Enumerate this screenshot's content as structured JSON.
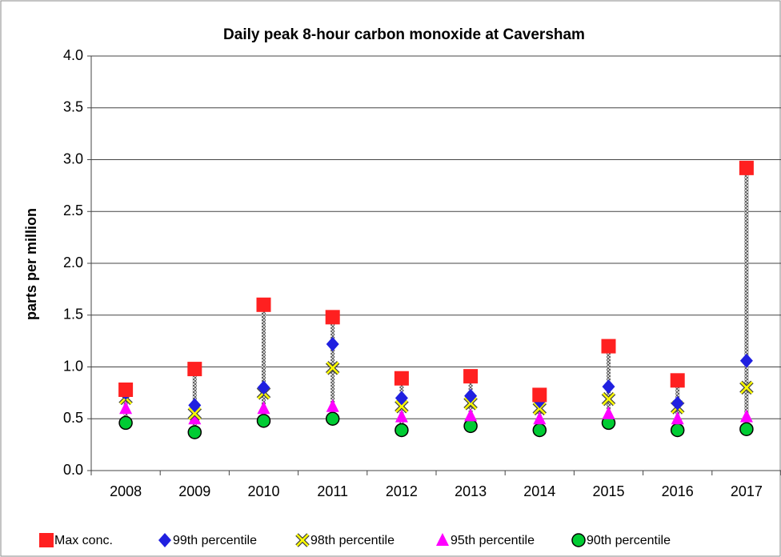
{
  "chart_data": {
    "type": "line",
    "title": "Daily peak 8-hour carbon monoxide at Caversham",
    "y_label": "parts per million",
    "categories": [
      "2008",
      "2009",
      "2010",
      "2011",
      "2012",
      "2013",
      "2014",
      "2015",
      "2016",
      "2017"
    ],
    "ylim": [
      0,
      4
    ],
    "yticks": [
      {
        "value": 0,
        "label": "0.0"
      },
      0.5,
      {
        "value": 1,
        "label": "1.0"
      },
      1.5,
      {
        "value": 2,
        "label": "2.0"
      },
      2.5,
      {
        "value": 3,
        "label": "3.0"
      },
      3.5,
      {
        "value": 4,
        "label": "4.0"
      }
    ],
    "grid": true,
    "high_low_lines": true,
    "legend": "bottom",
    "series": [
      {
        "name": "Max conc.",
        "color": "#ff2020",
        "marker": "square",
        "values": [
          0.78,
          0.98,
          1.6,
          1.48,
          0.89,
          0.91,
          0.73,
          1.2,
          0.87,
          2.92
        ]
      },
      {
        "name": "99th percentile",
        "color": "#2020e0",
        "marker": "diamond",
        "values": [
          0.75,
          0.63,
          0.8,
          1.22,
          0.7,
          0.72,
          0.67,
          0.81,
          0.65,
          1.06
        ]
      },
      {
        "name": "98th percentile",
        "color": "#ffff00",
        "marker": "x",
        "values": [
          0.7,
          0.55,
          0.75,
          0.99,
          0.62,
          0.65,
          0.6,
          0.69,
          0.61,
          0.8
        ]
      },
      {
        "name": "95th percentile",
        "color": "#ff00ff",
        "marker": "triangle",
        "values": [
          0.6,
          0.5,
          0.6,
          0.62,
          0.52,
          0.53,
          0.5,
          0.55,
          0.5,
          0.52
        ]
      },
      {
        "name": "90th percentile",
        "color": "#00cc33",
        "marker": "circle",
        "values": [
          0.46,
          0.37,
          0.48,
          0.5,
          0.39,
          0.43,
          0.39,
          0.46,
          0.39,
          0.4
        ]
      }
    ]
  }
}
